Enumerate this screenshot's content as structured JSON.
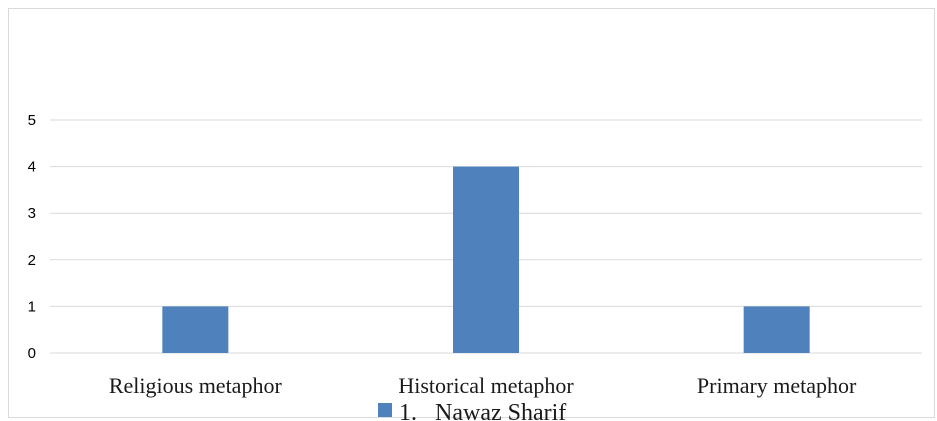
{
  "chart_data": {
    "type": "bar",
    "categories": [
      "Religious metaphor",
      "Historical metaphor",
      "Primary metaphor"
    ],
    "series": [
      {
        "name": "1. Nawaz Sharif",
        "values": [
          1,
          4,
          1
        ],
        "color": "#4f81bd"
      }
    ],
    "title": "",
    "xlabel": "",
    "ylabel": "",
    "ylim": [
      0,
      5
    ],
    "yticks": [
      0,
      1,
      2,
      3,
      4,
      5
    ],
    "grid": true,
    "legend_position": "bottom",
    "gridline_color": "#d9d9d9"
  },
  "legend": {
    "label": "1.   Nawaz Sharif"
  }
}
